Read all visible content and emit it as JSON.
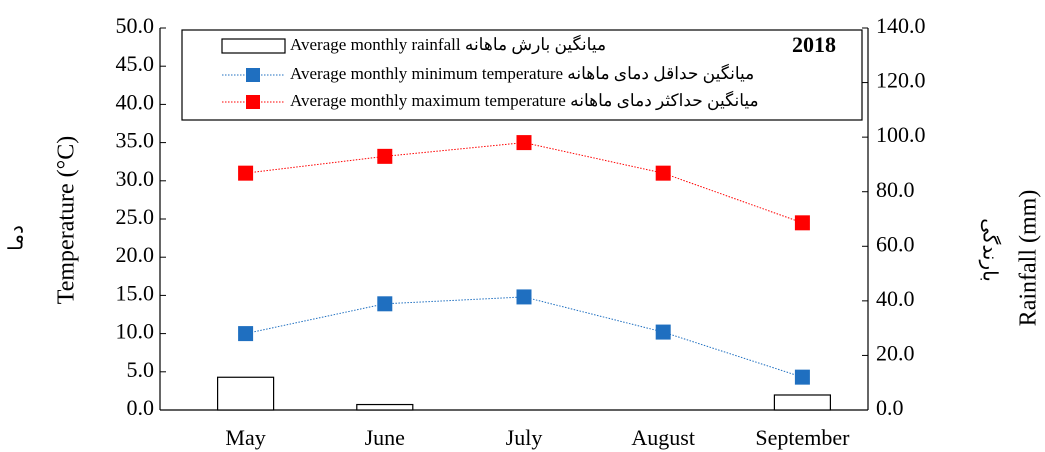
{
  "chart_data": {
    "type": "combo",
    "annotation": "2018",
    "ylabel": "Temperature (°C)",
    "ylabel_fa": "دما",
    "y2label": "Rainfall (mm)",
    "y2label_fa": "بارندگی",
    "categories": [
      "May",
      "June",
      "July",
      "August",
      "September"
    ],
    "series": [
      {
        "name": "Average monthly rainfall میانگین بارش ماهانه",
        "type": "bar",
        "axis": "y2",
        "color": "#ffffff",
        "values": [
          12,
          2,
          0,
          0,
          5.5
        ]
      },
      {
        "name": "Average monthly minimum temperature میانگین حداقل دمای ماهانه",
        "type": "line",
        "color": "#1f6fc0",
        "values": [
          10,
          13.9,
          14.8,
          10.2,
          4.3
        ]
      },
      {
        "name": "Average monthly maximum temperature  میانگین حداکثر دمای ماهانه",
        "type": "line",
        "color": "#ff0000",
        "values": [
          31,
          33.2,
          35,
          31,
          24.5
        ]
      }
    ],
    "ylim": [
      0,
      50
    ],
    "yticks": [
      {
        "value": 0,
        "label": "0.0"
      },
      {
        "value": 5,
        "label": "5.0"
      },
      {
        "value": 10,
        "label": "10.0"
      },
      {
        "value": 15,
        "label": "15.0"
      },
      {
        "value": 20,
        "label": "20.0"
      },
      {
        "value": 25,
        "label": "25.0"
      },
      {
        "value": 30,
        "label": "30.0"
      },
      {
        "value": 35,
        "label": "35.0"
      },
      {
        "value": 40,
        "label": "40.0"
      },
      {
        "value": 45,
        "label": "45.0"
      },
      {
        "value": 50,
        "label": "50.0"
      }
    ],
    "y2lim": [
      0,
      140
    ],
    "y2ticks": [
      {
        "value": 0,
        "label": "0.0"
      },
      {
        "value": 20,
        "label": "20.0"
      },
      {
        "value": 40,
        "label": "40.0"
      },
      {
        "value": 60,
        "label": "60.0"
      },
      {
        "value": 80,
        "label": "80.0"
      },
      {
        "value": 100,
        "label": "100.0"
      },
      {
        "value": 120,
        "label": "120.0"
      },
      {
        "value": 140,
        "label": "140.0"
      }
    ]
  }
}
